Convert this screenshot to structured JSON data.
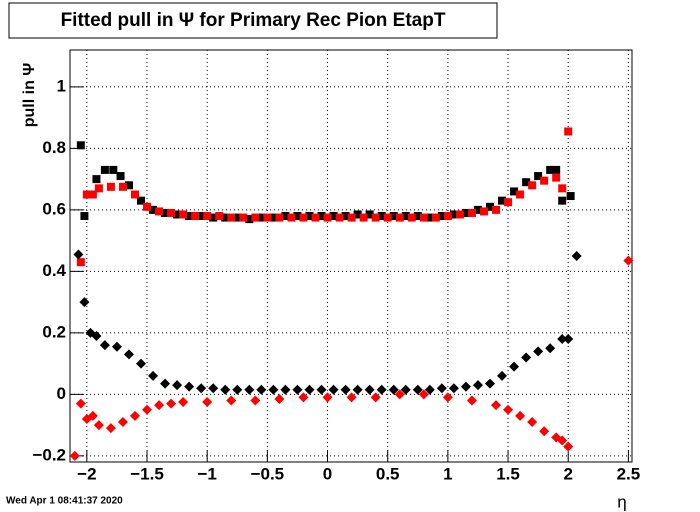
{
  "chart_data": {
    "type": "scatter",
    "title": "Fitted pull in  Ψ  for Primary Rec Pion EtapT",
    "y_label": "pull in  Ψ",
    "x_label": "η",
    "footer": "Wed Apr  1 08:41:37 2020",
    "xlim": [
      -2.14,
      2.53
    ],
    "ylim": [
      -0.22,
      1.12
    ],
    "grid": true,
    "xticks": [
      {
        "value": -2,
        "label": "−2"
      },
      {
        "value": -1.5,
        "label": "−1.5"
      },
      {
        "value": -1,
        "label": "−1"
      },
      {
        "value": -0.5,
        "label": "−0.5"
      },
      0,
      0.5,
      1,
      1.5,
      2,
      2.5
    ],
    "yticks": [
      {
        "value": -0.2,
        "label": "−0.2"
      },
      0,
      0.2,
      0.4,
      0.6,
      0.8,
      1
    ],
    "series": [
      {
        "color": "#000000",
        "marker": "square",
        "x": [
          -2.05,
          -2.02,
          -1.98,
          -1.92,
          -1.85,
          -1.78,
          -1.72,
          -1.65,
          -1.55,
          -1.45,
          -1.35,
          -1.25,
          -1.15,
          -1.05,
          -0.95,
          -0.85,
          -0.75,
          -0.65,
          -0.55,
          -0.45,
          -0.35,
          -0.25,
          -0.15,
          -0.05,
          0.05,
          0.15,
          0.25,
          0.35,
          0.45,
          0.55,
          0.65,
          0.75,
          0.85,
          0.95,
          1.05,
          1.15,
          1.25,
          1.35,
          1.45,
          1.55,
          1.65,
          1.75,
          1.85,
          1.9,
          1.95,
          2.02
        ],
        "values": [
          0.81,
          0.58,
          0.65,
          0.7,
          0.73,
          0.73,
          0.71,
          0.68,
          0.63,
          0.6,
          0.59,
          0.585,
          0.58,
          0.58,
          0.575,
          0.575,
          0.575,
          0.57,
          0.575,
          0.575,
          0.58,
          0.58,
          0.58,
          0.58,
          0.58,
          0.58,
          0.585,
          0.585,
          0.58,
          0.58,
          0.58,
          0.58,
          0.575,
          0.58,
          0.585,
          0.59,
          0.6,
          0.61,
          0.63,
          0.66,
          0.69,
          0.71,
          0.73,
          0.73,
          0.63,
          0.645
        ]
      },
      {
        "color": "#ff0000",
        "marker": "square",
        "x": [
          -2.05,
          -2.0,
          -1.95,
          -1.9,
          -1.8,
          -1.7,
          -1.6,
          -1.5,
          -1.4,
          -1.3,
          -1.2,
          -1.1,
          -1.0,
          -0.9,
          -0.8,
          -0.7,
          -0.6,
          -0.5,
          -0.4,
          -0.3,
          -0.2,
          -0.1,
          0,
          0.1,
          0.2,
          0.3,
          0.4,
          0.5,
          0.6,
          0.7,
          0.8,
          0.9,
          1.0,
          1.1,
          1.2,
          1.3,
          1.4,
          1.5,
          1.6,
          1.7,
          1.8,
          1.9,
          1.95,
          2.0
        ],
        "values": [
          0.43,
          0.65,
          0.65,
          0.67,
          0.675,
          0.675,
          0.65,
          0.61,
          0.595,
          0.59,
          0.585,
          0.58,
          0.58,
          0.58,
          0.575,
          0.575,
          0.575,
          0.575,
          0.575,
          0.575,
          0.575,
          0.575,
          0.575,
          0.575,
          0.575,
          0.575,
          0.575,
          0.575,
          0.575,
          0.575,
          0.575,
          0.575,
          0.58,
          0.585,
          0.59,
          0.595,
          0.6,
          0.625,
          0.65,
          0.68,
          0.695,
          0.705,
          0.67,
          0.855
        ]
      },
      {
        "color": "#000000",
        "marker": "diamond",
        "x": [
          -2.07,
          -2.02,
          -1.97,
          -1.92,
          -1.85,
          -1.75,
          -1.65,
          -1.55,
          -1.45,
          -1.35,
          -1.25,
          -1.15,
          -1.05,
          -0.95,
          -0.85,
          -0.75,
          -0.65,
          -0.55,
          -0.45,
          -0.35,
          -0.25,
          -0.15,
          -0.05,
          0.05,
          0.15,
          0.25,
          0.35,
          0.45,
          0.55,
          0.65,
          0.75,
          0.85,
          0.95,
          1.05,
          1.15,
          1.25,
          1.35,
          1.45,
          1.55,
          1.65,
          1.75,
          1.85,
          1.95,
          2.0,
          2.07
        ],
        "values": [
          0.455,
          0.3,
          0.2,
          0.19,
          0.16,
          0.155,
          0.13,
          0.1,
          0.06,
          0.035,
          0.03,
          0.025,
          0.02,
          0.02,
          0.015,
          0.015,
          0.015,
          0.015,
          0.015,
          0.015,
          0.015,
          0.015,
          0.015,
          0.015,
          0.015,
          0.015,
          0.015,
          0.015,
          0.015,
          0.015,
          0.015,
          0.015,
          0.02,
          0.02,
          0.025,
          0.03,
          0.035,
          0.06,
          0.09,
          0.12,
          0.14,
          0.15,
          0.18,
          0.18,
          0.45
        ]
      },
      {
        "color": "#ff0000",
        "marker": "diamond",
        "x": [
          -2.1,
          -2.05,
          -2.0,
          -1.95,
          -1.9,
          -1.8,
          -1.7,
          -1.6,
          -1.5,
          -1.4,
          -1.3,
          -1.2,
          -1.0,
          -0.8,
          -0.6,
          -0.4,
          -0.2,
          0,
          0.2,
          0.4,
          0.6,
          0.8,
          1.0,
          1.2,
          1.4,
          1.5,
          1.6,
          1.7,
          1.8,
          1.9,
          1.95,
          2.0,
          2.5
        ],
        "values": [
          -0.2,
          -0.03,
          -0.08,
          -0.07,
          -0.1,
          -0.11,
          -0.09,
          -0.07,
          -0.05,
          -0.035,
          -0.03,
          -0.025,
          -0.025,
          -0.02,
          -0.02,
          -0.015,
          -0.01,
          -0.01,
          -0.01,
          -0.01,
          0,
          0,
          -0.01,
          -0.02,
          -0.035,
          -0.05,
          -0.07,
          -0.09,
          -0.12,
          -0.14,
          -0.15,
          -0.17,
          0.435
        ]
      }
    ]
  }
}
